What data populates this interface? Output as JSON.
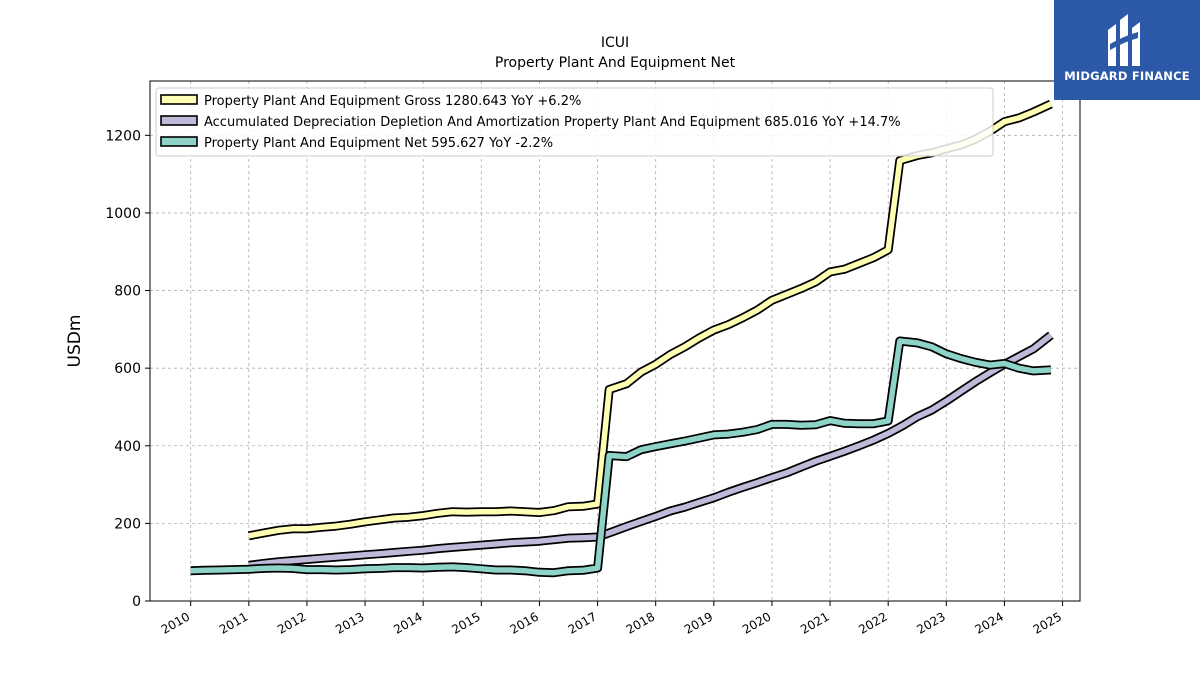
{
  "brand": {
    "name": "MIDGARD FINANCE",
    "color": "#2b59a8"
  },
  "chart_data": {
    "type": "line",
    "title": "ICUI",
    "subtitle": "Property Plant And Equipment Net",
    "xlabel": "",
    "ylabel": "USDm",
    "xlim": [
      2009.3,
      2025.3
    ],
    "ylim": [
      0,
      1340
    ],
    "x_ticks": [
      "2010",
      "2011",
      "2012",
      "2013",
      "2014",
      "2015",
      "2016",
      "2017",
      "2018",
      "2019",
      "2020",
      "2021",
      "2022",
      "2023",
      "2024",
      "2025"
    ],
    "y_ticks": [
      0,
      200,
      400,
      600,
      800,
      1000,
      1200
    ],
    "grid": true,
    "legend_position": "top-left",
    "series": [
      {
        "name": "Property Plant And Equipment Gross  1280.643 YoY +6.2%",
        "color": "#ffffb3",
        "x": [
          2011.0,
          2011.25,
          2011.5,
          2011.75,
          2012.0,
          2012.25,
          2012.5,
          2012.75,
          2013.0,
          2013.25,
          2013.5,
          2013.75,
          2014.0,
          2014.25,
          2014.5,
          2014.75,
          2015.0,
          2015.25,
          2015.5,
          2015.75,
          2016.0,
          2016.25,
          2016.5,
          2016.75,
          2017.0,
          2017.2,
          2017.5,
          2017.75,
          2018.0,
          2018.25,
          2018.5,
          2018.75,
          2019.0,
          2019.25,
          2019.5,
          2019.75,
          2020.0,
          2020.25,
          2020.5,
          2020.75,
          2021.0,
          2021.25,
          2021.5,
          2021.75,
          2022.0,
          2022.2,
          2022.5,
          2022.75,
          2023.0,
          2023.25,
          2023.5,
          2023.75,
          2024.0,
          2024.25,
          2024.5,
          2024.8
        ],
        "values": [
          168,
          175,
          182,
          186,
          186,
          190,
          193,
          198,
          204,
          209,
          214,
          216,
          220,
          226,
          230,
          229,
          230,
          230,
          232,
          230,
          228,
          233,
          243,
          244,
          250,
          545,
          560,
          590,
          610,
          635,
          655,
          678,
          698,
          712,
          730,
          750,
          775,
          790,
          805,
          822,
          848,
          855,
          870,
          885,
          905,
          1135,
          1148,
          1155,
          1165,
          1175,
          1190,
          1210,
          1235,
          1245,
          1260,
          1280.643
        ]
      },
      {
        "name": "Accumulated Depreciation Depletion And Amortization Property Plant And Equipment  685.016 YoY +14.7%",
        "color": "#bebada",
        "x": [
          2011.0,
          2011.25,
          2011.5,
          2011.75,
          2012.0,
          2012.25,
          2012.5,
          2012.75,
          2013.0,
          2013.25,
          2013.5,
          2013.75,
          2014.0,
          2014.25,
          2014.5,
          2014.75,
          2015.0,
          2015.25,
          2015.5,
          2015.75,
          2016.0,
          2016.25,
          2016.5,
          2016.75,
          2017.0,
          2017.25,
          2017.5,
          2017.75,
          2018.0,
          2018.25,
          2018.5,
          2018.75,
          2019.0,
          2019.25,
          2019.5,
          2019.75,
          2020.0,
          2020.25,
          2020.5,
          2020.75,
          2021.0,
          2021.25,
          2021.5,
          2021.75,
          2022.0,
          2022.25,
          2022.5,
          2022.75,
          2023.0,
          2023.25,
          2023.5,
          2023.75,
          2024.0,
          2024.25,
          2024.5,
          2024.8
        ],
        "values": [
          92,
          97,
          101,
          104,
          107,
          110,
          113,
          116,
          119,
          122,
          125,
          128,
          131,
          135,
          138,
          141,
          144,
          147,
          150,
          152,
          154,
          158,
          162,
          163,
          165,
          178,
          192,
          205,
          218,
          232,
          242,
          254,
          266,
          280,
          293,
          305,
          318,
          330,
          345,
          360,
          373,
          386,
          400,
          415,
          432,
          452,
          475,
          492,
          515,
          540,
          565,
          588,
          610,
          630,
          650,
          685.016
        ]
      },
      {
        "name": "Property Plant And Equipment Net  595.627 YoY -2.2%",
        "color": "#8dd3c7",
        "x": [
          2010.0,
          2010.25,
          2010.5,
          2010.75,
          2011.0,
          2011.25,
          2011.5,
          2011.75,
          2012.0,
          2012.25,
          2012.5,
          2012.75,
          2013.0,
          2013.25,
          2013.5,
          2013.75,
          2014.0,
          2014.25,
          2014.5,
          2014.75,
          2015.0,
          2015.25,
          2015.5,
          2015.75,
          2016.0,
          2016.25,
          2016.5,
          2016.75,
          2017.0,
          2017.2,
          2017.5,
          2017.75,
          2018.0,
          2018.25,
          2018.5,
          2018.75,
          2019.0,
          2019.25,
          2019.5,
          2019.75,
          2020.0,
          2020.25,
          2020.5,
          2020.75,
          2021.0,
          2021.25,
          2021.5,
          2021.75,
          2022.0,
          2022.2,
          2022.5,
          2022.75,
          2023.0,
          2023.25,
          2023.5,
          2023.75,
          2024.0,
          2024.25,
          2024.5,
          2024.8
        ],
        "values": [
          78,
          79,
          80,
          81,
          82,
          84,
          85,
          84,
          81,
          81,
          80,
          81,
          83,
          84,
          86,
          86,
          85,
          87,
          88,
          86,
          83,
          80,
          80,
          78,
          74,
          73,
          78,
          79,
          85,
          375,
          372,
          390,
          398,
          405,
          412,
          420,
          428,
          430,
          435,
          442,
          455,
          455,
          453,
          454,
          465,
          458,
          457,
          457,
          464,
          670,
          665,
          655,
          637,
          625,
          615,
          608,
          612,
          600,
          593,
          595.627
        ]
      }
    ]
  }
}
